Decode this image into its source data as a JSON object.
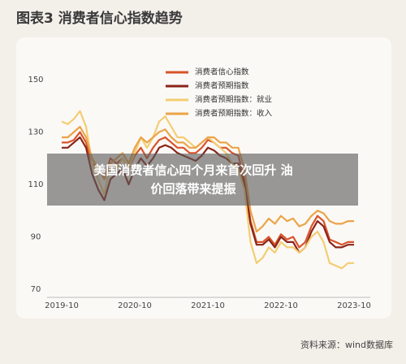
{
  "chart_data": {
    "type": "line",
    "title": "图表3 消费者信心指数趋势",
    "source": "资料来源：wind数据库",
    "caption_lines": [
      "美国消费者信心四个月来首次回升 油",
      "价回落带来提振"
    ],
    "categories": [
      "2019-10",
      null,
      null,
      null,
      null,
      null,
      null,
      null,
      null,
      null,
      null,
      null,
      "2020-10",
      null,
      null,
      null,
      null,
      null,
      null,
      null,
      null,
      null,
      null,
      null,
      "2021-10",
      null,
      null,
      null,
      null,
      null,
      null,
      null,
      null,
      null,
      null,
      null,
      "2022-10",
      null,
      null,
      null,
      null,
      null,
      null,
      null,
      null,
      null,
      null,
      null,
      "2023-10"
    ],
    "series": [
      {
        "name": "消费者信心指数",
        "color": "#d9532b",
        "values": [
          126,
          126,
          127,
          130,
          126,
          118,
          116,
          112,
          120,
          118,
          120,
          116,
          121,
          124,
          120,
          124,
          127,
          128,
          126,
          124,
          124,
          122,
          122,
          124,
          127,
          126,
          124,
          124,
          122,
          121,
          112,
          96,
          88,
          88,
          90,
          87,
          91,
          89,
          90,
          86,
          88,
          94,
          98,
          96,
          89,
          88,
          87,
          88,
          88
        ]
      },
      {
        "name": "消费者预期指数",
        "color": "#8a2418",
        "values": [
          124,
          124,
          126,
          128,
          124,
          114,
          108,
          104,
          112,
          114,
          116,
          110,
          116,
          120,
          117,
          120,
          124,
          125,
          124,
          122,
          121,
          120,
          119,
          121,
          124,
          123,
          121,
          120,
          118,
          118,
          110,
          95,
          87,
          87,
          89,
          86,
          90,
          88,
          88,
          84,
          86,
          92,
          96,
          94,
          88,
          86,
          86,
          87,
          87
        ]
      },
      {
        "name": "消费者预期指数：就业",
        "color": "#f3cd72",
        "values": [
          134,
          133,
          135,
          138,
          132,
          118,
          112,
          106,
          118,
          116,
          120,
          116,
          122,
          128,
          124,
          128,
          134,
          136,
          132,
          128,
          128,
          126,
          124,
          126,
          128,
          126,
          124,
          122,
          118,
          116,
          108,
          88,
          80,
          82,
          86,
          84,
          88,
          86,
          86,
          84,
          86,
          90,
          92,
          88,
          80,
          79,
          78,
          80,
          80
        ]
      },
      {
        "name": "消费者预期指数：收入",
        "color": "#eba447",
        "values": [
          128,
          128,
          130,
          132,
          128,
          120,
          116,
          112,
          118,
          120,
          122,
          118,
          124,
          128,
          126,
          128,
          130,
          131,
          128,
          126,
          126,
          124,
          124,
          126,
          128,
          128,
          126,
          126,
          124,
          124,
          116,
          100,
          92,
          94,
          97,
          95,
          98,
          96,
          97,
          94,
          95,
          98,
          100,
          99,
          96,
          95,
          95,
          96,
          96
        ]
      }
    ],
    "ylim": [
      70,
      150
    ],
    "yticks": [
      70,
      90,
      110,
      130,
      150
    ],
    "grid": false
  }
}
